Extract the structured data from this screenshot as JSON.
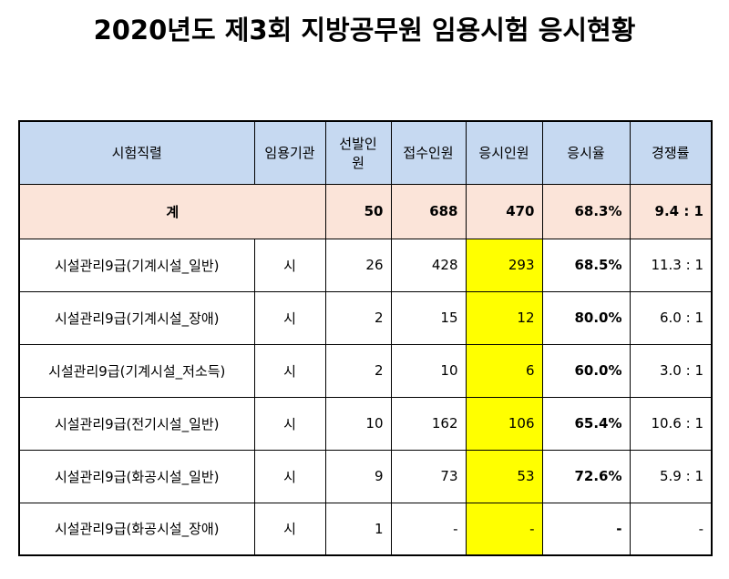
{
  "title": "2020년도 제3회 지방공무원 임용시험 응시현황",
  "headers": [
    "시험직렬",
    "임용기관",
    "선발인원",
    "접수인원",
    "응시인원",
    "응시율",
    "경쟁률"
  ],
  "total": {
    "label": "계",
    "selected": "50",
    "applied": "688",
    "attended": "470",
    "rate": "68.3%",
    "competition": "9.4 : 1"
  },
  "rows": [
    {
      "name": "시설관리9급(기계시설_일반)",
      "org": "시",
      "selected": "26",
      "applied": "428",
      "attended": "293",
      "rate": "68.5%",
      "competition": "11.3 : 1"
    },
    {
      "name": "시설관리9급(기계시설_장애)",
      "org": "시",
      "selected": "2",
      "applied": "15",
      "attended": "12",
      "rate": "80.0%",
      "competition": "6.0 : 1"
    },
    {
      "name": "시설관리9급(기계시설_저소득)",
      "org": "시",
      "selected": "2",
      "applied": "10",
      "attended": "6",
      "rate": "60.0%",
      "competition": "3.0 : 1"
    },
    {
      "name": "시설관리9급(전기시설_일반)",
      "org": "시",
      "selected": "10",
      "applied": "162",
      "attended": "106",
      "rate": "65.4%",
      "competition": "10.6 : 1"
    },
    {
      "name": "시설관리9급(화공시설_일반)",
      "org": "시",
      "selected": "9",
      "applied": "73",
      "attended": "53",
      "rate": "72.6%",
      "competition": "5.9 : 1"
    },
    {
      "name": "시설관리9급(화공시설_장애)",
      "org": "시",
      "selected": "1",
      "applied": "-",
      "attended": "-",
      "rate": "-",
      "competition": "-"
    }
  ]
}
